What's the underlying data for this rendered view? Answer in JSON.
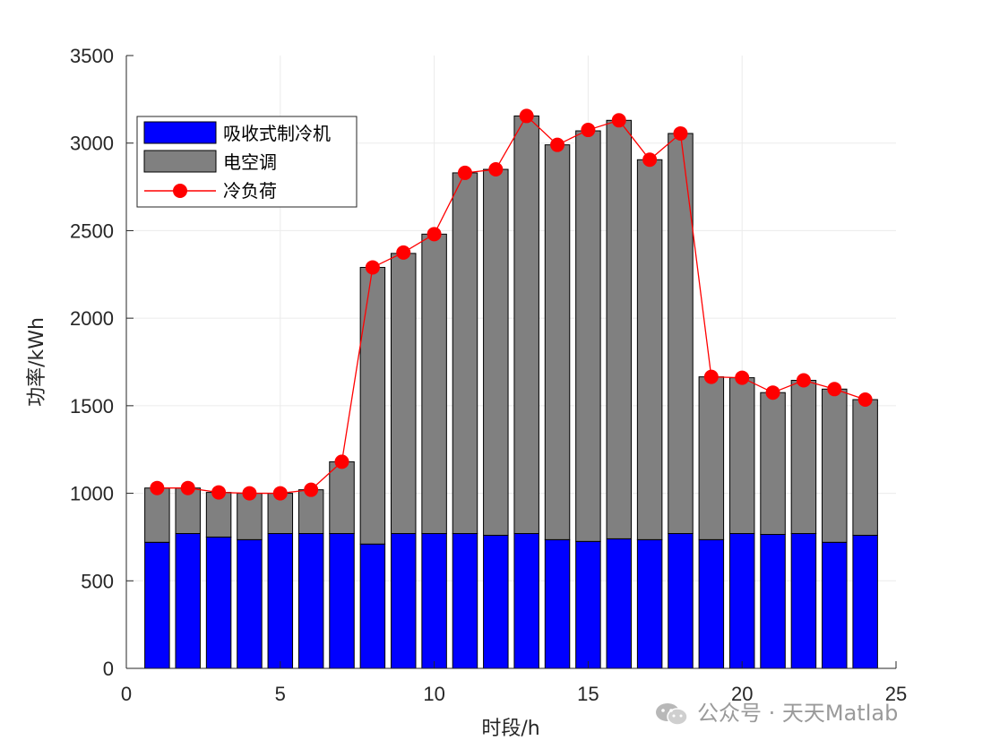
{
  "chart_data": {
    "type": "bar",
    "stacked": true,
    "xlabel": "时段/h",
    "ylabel": "功率/kWh",
    "xlim": [
      0,
      25
    ],
    "ylim": [
      0,
      3500
    ],
    "xticks": [
      0,
      5,
      10,
      15,
      20,
      25
    ],
    "yticks": [
      0,
      500,
      1000,
      1500,
      2000,
      2500,
      3000,
      3500
    ],
    "grid": true,
    "legend_position": "top-left",
    "x": [
      1,
      2,
      3,
      4,
      5,
      6,
      7,
      8,
      9,
      10,
      11,
      12,
      13,
      14,
      15,
      16,
      17,
      18,
      19,
      20,
      21,
      22,
      23,
      24
    ],
    "series": [
      {
        "name": "吸收式制冷机",
        "kind": "bar",
        "color": "#0000ff",
        "values": [
          720,
          770,
          750,
          735,
          770,
          770,
          770,
          710,
          770,
          770,
          770,
          760,
          770,
          735,
          725,
          740,
          735,
          770,
          735,
          770,
          765,
          770,
          720,
          760
        ]
      },
      {
        "name": "电空调",
        "kind": "bar",
        "color": "#808080",
        "values": [
          310,
          260,
          255,
          265,
          230,
          250,
          410,
          1580,
          1600,
          1710,
          2060,
          2090,
          2385,
          2255,
          2345,
          2390,
          2170,
          2285,
          930,
          890,
          810,
          875,
          875,
          775
        ]
      },
      {
        "name": "冷负荷",
        "kind": "line",
        "color": "#ff0000",
        "values": [
          1030,
          1030,
          1005,
          1000,
          1000,
          1020,
          1180,
          2290,
          2375,
          2480,
          2830,
          2850,
          3155,
          2990,
          3075,
          3130,
          2905,
          3055,
          1665,
          1660,
          1575,
          1645,
          1595,
          1535
        ]
      }
    ]
  },
  "watermark": {
    "text": "公众号 · 天天Matlab"
  }
}
